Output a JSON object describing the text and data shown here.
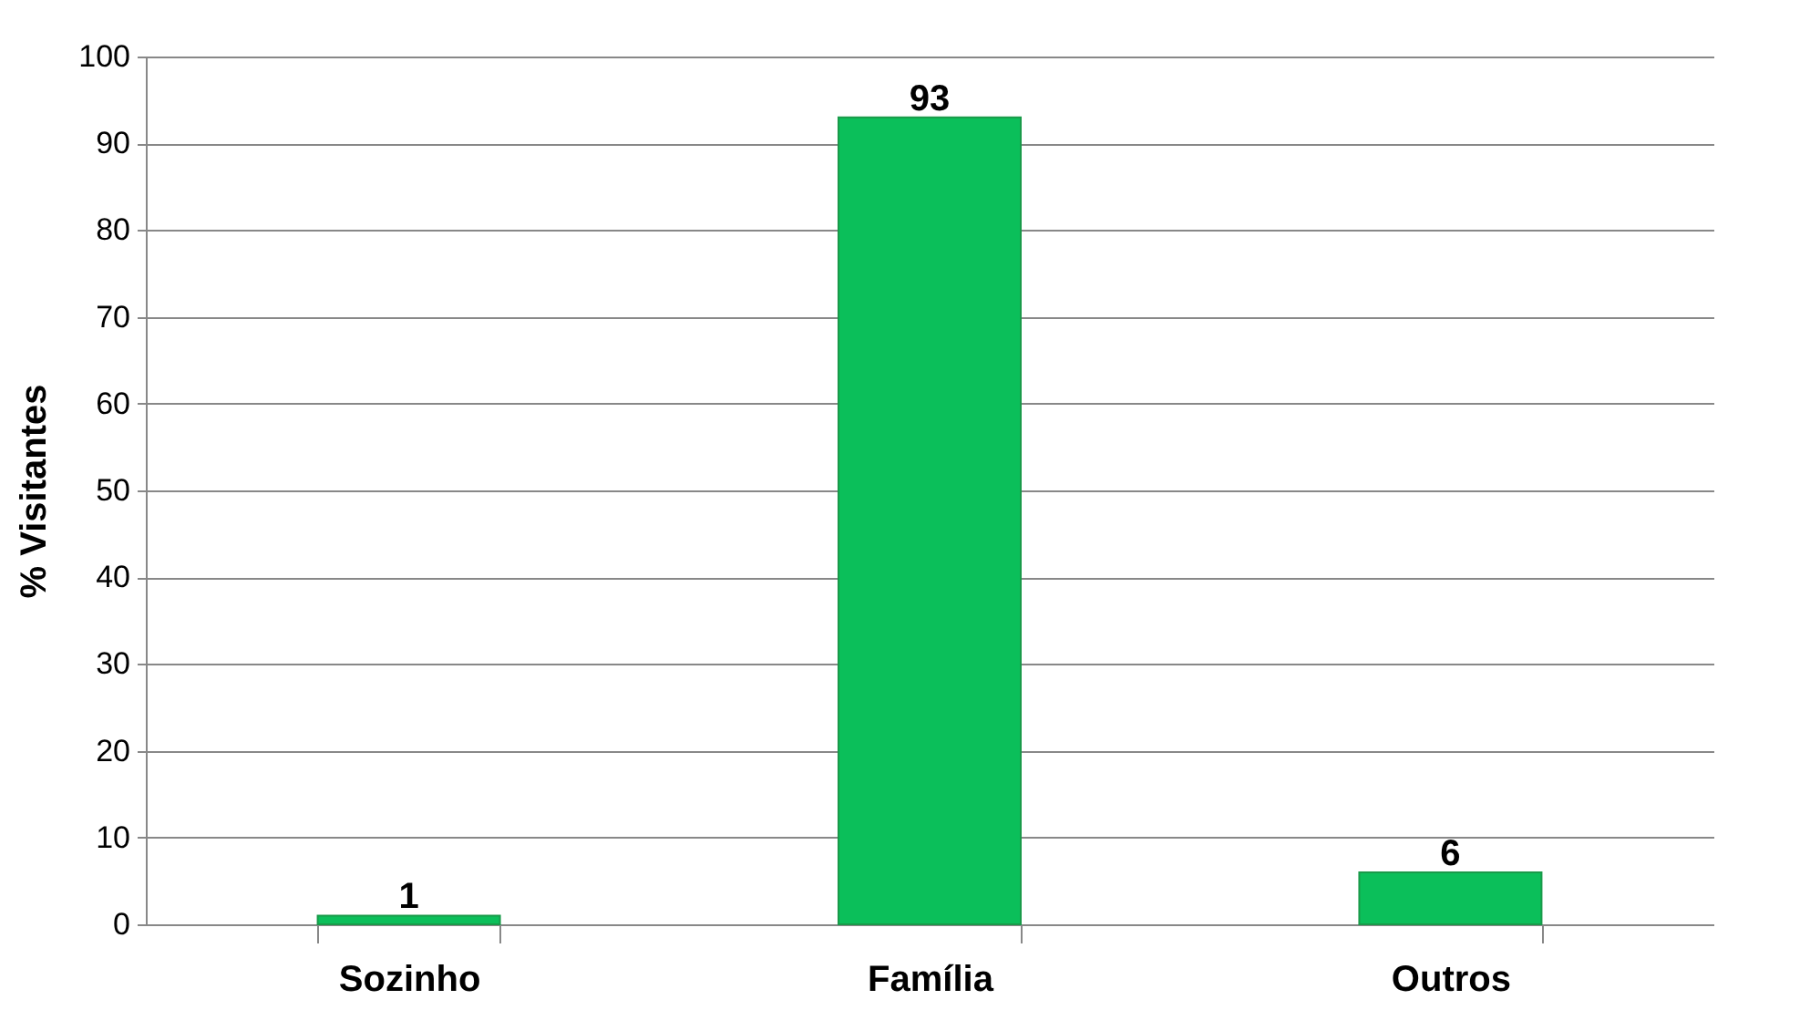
{
  "chart_data": {
    "type": "bar",
    "ylabel": "% Visitantes",
    "categories": [
      "Sozinho",
      "Família",
      "Outros"
    ],
    "values": [
      1,
      93,
      6
    ],
    "color": "#0bbf5a",
    "ylim": [
      0,
      100
    ],
    "yticks": [
      0,
      10,
      20,
      30,
      40,
      50,
      60,
      70,
      80,
      90,
      100
    ],
    "grid": "y",
    "data_labels": true
  }
}
